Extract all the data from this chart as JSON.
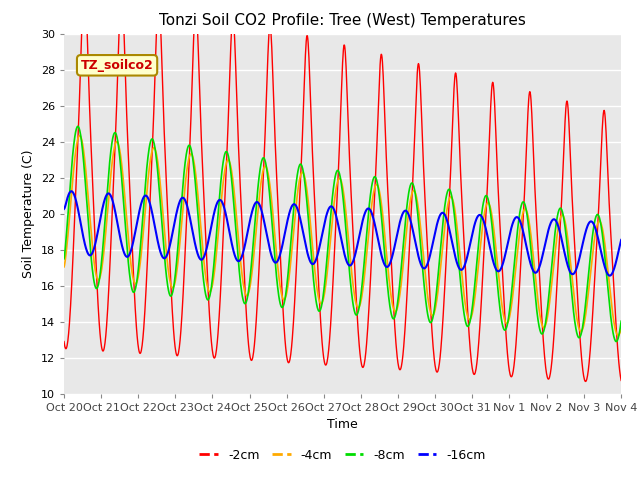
{
  "title": "Tonzi Soil CO2 Profile: Tree (West) Temperatures",
  "xlabel": "Time",
  "ylabel": "Soil Temperature (C)",
  "ylim": [
    10,
    30
  ],
  "bg_color": "#ffffff",
  "plot_bg_color": "#e8e8e8",
  "legend_label": "TZ_soilco2",
  "series": [
    "-2cm",
    "-4cm",
    "-8cm",
    "-16cm"
  ],
  "colors": [
    "#ff0000",
    "#ffaa00",
    "#00dd00",
    "#0000ff"
  ],
  "xtick_labels": [
    "Oct 20",
    "Oct 21",
    "Oct 22",
    "Oct 23",
    "Oct 24",
    "Oct 25",
    "Oct 26",
    "Oct 27",
    "Oct 28",
    "Oct 29",
    "Oct 30",
    "Oct 31",
    "Nov 1",
    "Nov 2",
    "Nov 3",
    "Nov 4"
  ],
  "xtick_positions": [
    0,
    24,
    48,
    72,
    96,
    120,
    144,
    168,
    192,
    216,
    240,
    264,
    288,
    312,
    336,
    360
  ]
}
